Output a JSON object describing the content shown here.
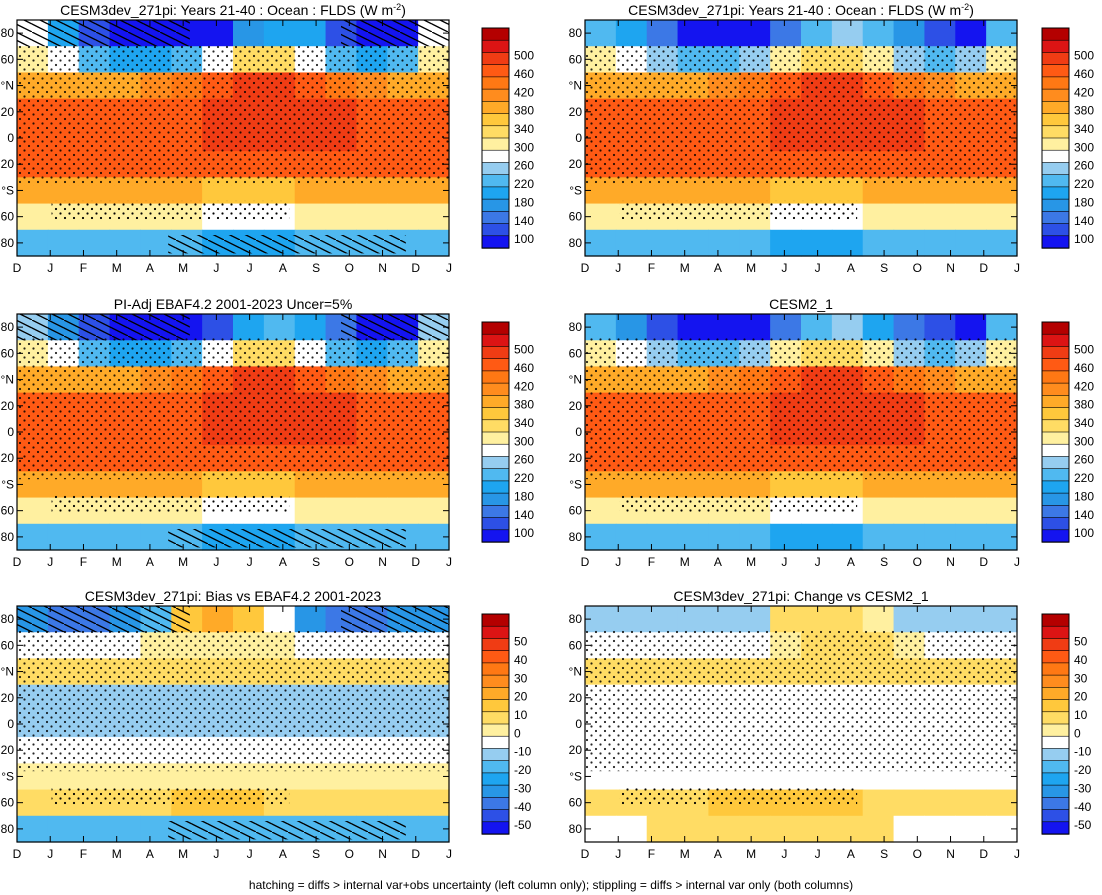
{
  "footnote": "hatching = diffs > internal var+obs uncertainty (left column only); stippling = diffs > internal var only (both columns)",
  "chart_data": [
    {
      "type": "heatmap",
      "title": "CESM3dev_271pi: Years 21-40 : Ocean : FLDS (W m",
      "title_sup": "-2",
      "title_suffix": ")",
      "x_tick_labels": [
        "D",
        "J",
        "F",
        "M",
        "A",
        "M",
        "J",
        "J",
        "A",
        "S",
        "O",
        "N",
        "D",
        "J"
      ],
      "y_tick_labels": [
        "80",
        "60",
        "°N",
        "20",
        "0",
        "20",
        "°S",
        "60",
        "80"
      ],
      "colorbar_labels": [
        "500",
        "460",
        "420",
        "380",
        "340",
        "300",
        "260",
        "220",
        "180",
        "140",
        "100"
      ],
      "colors": [
        "#1414f0",
        "#2d50e6",
        "#3c78e6",
        "#2896e6",
        "#1ea5f0",
        "#50b9f0",
        "#96cdf0",
        "#ffffff",
        "#fff0a0",
        "#ffdc64",
        "#ffc83c",
        "#ffaa28",
        "#ff8c1e",
        "#ff7814",
        "#ff5a14",
        "#f03c14",
        "#dc1414",
        "#b40000"
      ],
      "center": 300,
      "step": 20,
      "hatching": true,
      "stippling": true,
      "values": [
        [
          260,
          200,
          140,
          100,
          100,
          100,
          130,
          180,
          210,
          200,
          150,
          110,
          100,
          260
        ],
        [
          280,
          260,
          220,
          200,
          200,
          220,
          260,
          300,
          300,
          260,
          220,
          200,
          220,
          280
        ],
        [
          340,
          340,
          340,
          340,
          360,
          380,
          400,
          420,
          420,
          400,
          380,
          360,
          340,
          340
        ],
        [
          400,
          400,
          400,
          400,
          400,
          400,
          420,
          420,
          420,
          420,
          420,
          400,
          400,
          400
        ],
        [
          400,
          400,
          400,
          400,
          400,
          400,
          420,
          420,
          420,
          420,
          420,
          400,
          400,
          400
        ],
        [
          400,
          400,
          400,
          400,
          400,
          400,
          400,
          400,
          400,
          400,
          400,
          400,
          400,
          400
        ],
        [
          340,
          340,
          340,
          340,
          340,
          340,
          320,
          320,
          320,
          340,
          340,
          340,
          340,
          340
        ],
        [
          280,
          280,
          280,
          280,
          280,
          280,
          260,
          260,
          260,
          280,
          280,
          280,
          280,
          280
        ],
        [
          220,
          220,
          220,
          220,
          220,
          220,
          200,
          200,
          200,
          220,
          220,
          220,
          220,
          220
        ]
      ]
    },
    {
      "type": "heatmap",
      "title": "CESM3dev_271pi: Years 21-40 : Ocean : FLDS (W m",
      "title_sup": "-2",
      "title_suffix": ")",
      "x_tick_labels": [
        "D",
        "J",
        "F",
        "M",
        "A",
        "M",
        "J",
        "J",
        "A",
        "S",
        "O",
        "N",
        "D",
        "J"
      ],
      "y_tick_labels": [
        "80",
        "60",
        "°N",
        "20",
        "0",
        "20",
        "°S",
        "60",
        "80"
      ],
      "colorbar_labels": [
        "500",
        "460",
        "420",
        "380",
        "340",
        "300",
        "260",
        "220",
        "180",
        "140",
        "100"
      ],
      "colors": [
        "#1414f0",
        "#2d50e6",
        "#3c78e6",
        "#2896e6",
        "#1ea5f0",
        "#50b9f0",
        "#96cdf0",
        "#ffffff",
        "#fff0a0",
        "#ffdc64",
        "#ffc83c",
        "#ffaa28",
        "#ff8c1e",
        "#ff7814",
        "#ff5a14",
        "#f03c14",
        "#dc1414",
        "#b40000"
      ],
      "center": 300,
      "step": 20,
      "hatching": false,
      "stippling": true,
      "values": [
        [
          220,
          200,
          160,
          120,
          120,
          130,
          170,
          220,
          240,
          220,
          180,
          140,
          130,
          220
        ],
        [
          280,
          260,
          240,
          220,
          220,
          240,
          280,
          300,
          300,
          280,
          240,
          220,
          240,
          280
        ],
        [
          340,
          340,
          340,
          340,
          360,
          380,
          400,
          420,
          420,
          400,
          380,
          360,
          340,
          340
        ],
        [
          400,
          400,
          400,
          400,
          400,
          400,
          420,
          420,
          420,
          420,
          420,
          400,
          400,
          400
        ],
        [
          400,
          400,
          400,
          400,
          400,
          400,
          420,
          420,
          420,
          420,
          420,
          400,
          400,
          400
        ],
        [
          400,
          400,
          400,
          400,
          400,
          400,
          400,
          400,
          400,
          400,
          400,
          400,
          400,
          400
        ],
        [
          340,
          340,
          340,
          340,
          340,
          340,
          320,
          320,
          320,
          340,
          340,
          340,
          340,
          340
        ],
        [
          280,
          280,
          280,
          280,
          280,
          280,
          260,
          260,
          260,
          280,
          280,
          280,
          280,
          280
        ],
        [
          220,
          220,
          220,
          220,
          220,
          220,
          200,
          200,
          200,
          220,
          220,
          220,
          220,
          220
        ]
      ]
    },
    {
      "type": "heatmap",
      "title": "PI-Adj EBAF4.2 2001-2023 Uncer=5%",
      "x_tick_labels": [
        "D",
        "J",
        "F",
        "M",
        "A",
        "M",
        "J",
        "J",
        "A",
        "S",
        "O",
        "N",
        "D",
        "J"
      ],
      "y_tick_labels": [
        "80",
        "60",
        "°N",
        "20",
        "0",
        "20",
        "°S",
        "60",
        "80"
      ],
      "colorbar_labels": [
        "500",
        "460",
        "420",
        "380",
        "340",
        "300",
        "260",
        "220",
        "180",
        "140",
        "100"
      ],
      "colors": [
        "#1414f0",
        "#2d50e6",
        "#3c78e6",
        "#2896e6",
        "#1ea5f0",
        "#50b9f0",
        "#96cdf0",
        "#ffffff",
        "#fff0a0",
        "#ffdc64",
        "#ffc83c",
        "#ffaa28",
        "#ff8c1e",
        "#ff7814",
        "#ff5a14",
        "#f03c14",
        "#dc1414",
        "#b40000"
      ],
      "center": 300,
      "step": 20,
      "hatching": true,
      "stippling": true,
      "values": [
        [
          240,
          180,
          140,
          100,
          100,
          110,
          150,
          200,
          220,
          200,
          160,
          120,
          110,
          240
        ],
        [
          280,
          260,
          220,
          200,
          200,
          220,
          260,
          300,
          300,
          260,
          220,
          200,
          220,
          280
        ],
        [
          340,
          340,
          340,
          340,
          360,
          380,
          400,
          420,
          420,
          400,
          380,
          360,
          340,
          340
        ],
        [
          400,
          400,
          400,
          400,
          400,
          400,
          420,
          420,
          420,
          420,
          420,
          400,
          400,
          400
        ],
        [
          400,
          400,
          400,
          400,
          400,
          400,
          420,
          420,
          420,
          420,
          420,
          400,
          400,
          400
        ],
        [
          400,
          400,
          400,
          400,
          400,
          400,
          400,
          400,
          400,
          400,
          400,
          400,
          400,
          400
        ],
        [
          340,
          340,
          340,
          340,
          340,
          340,
          320,
          320,
          320,
          340,
          340,
          340,
          340,
          340
        ],
        [
          280,
          280,
          280,
          280,
          280,
          280,
          260,
          260,
          260,
          280,
          280,
          280,
          280,
          280
        ],
        [
          220,
          220,
          220,
          220,
          220,
          220,
          200,
          200,
          200,
          220,
          220,
          220,
          220,
          220
        ]
      ]
    },
    {
      "type": "heatmap",
      "title": "CESM2_1",
      "x_tick_labels": [
        "D",
        "J",
        "F",
        "M",
        "A",
        "M",
        "J",
        "J",
        "A",
        "S",
        "O",
        "N",
        "D",
        "J"
      ],
      "y_tick_labels": [
        "80",
        "60",
        "°N",
        "20",
        "0",
        "20",
        "°S",
        "60",
        "80"
      ],
      "colorbar_labels": [
        "500",
        "460",
        "420",
        "380",
        "340",
        "300",
        "260",
        "220",
        "180",
        "140",
        "100"
      ],
      "colors": [
        "#1414f0",
        "#2d50e6",
        "#3c78e6",
        "#2896e6",
        "#1ea5f0",
        "#50b9f0",
        "#96cdf0",
        "#ffffff",
        "#fff0a0",
        "#ffdc64",
        "#ffc83c",
        "#ffaa28",
        "#ff8c1e",
        "#ff7814",
        "#ff5a14",
        "#f03c14",
        "#dc1414",
        "#b40000"
      ],
      "center": 300,
      "step": 20,
      "hatching": false,
      "stippling": true,
      "values": [
        [
          220,
          180,
          140,
          120,
          120,
          130,
          170,
          220,
          240,
          210,
          170,
          140,
          130,
          220
        ],
        [
          280,
          260,
          240,
          220,
          220,
          240,
          280,
          300,
          300,
          280,
          240,
          220,
          240,
          280
        ],
        [
          340,
          340,
          340,
          340,
          360,
          380,
          400,
          420,
          420,
          400,
          380,
          360,
          340,
          340
        ],
        [
          400,
          400,
          400,
          400,
          400,
          400,
          420,
          420,
          420,
          420,
          420,
          400,
          400,
          400
        ],
        [
          400,
          400,
          400,
          400,
          400,
          400,
          420,
          420,
          420,
          420,
          420,
          400,
          400,
          400
        ],
        [
          400,
          400,
          400,
          400,
          400,
          400,
          400,
          400,
          400,
          400,
          400,
          400,
          400,
          400
        ],
        [
          340,
          340,
          340,
          340,
          340,
          340,
          320,
          320,
          320,
          340,
          340,
          340,
          340,
          340
        ],
        [
          280,
          280,
          280,
          280,
          280,
          280,
          260,
          260,
          260,
          280,
          280,
          280,
          280,
          280
        ],
        [
          220,
          220,
          220,
          220,
          220,
          220,
          200,
          200,
          200,
          220,
          220,
          220,
          220,
          220
        ]
      ]
    },
    {
      "type": "heatmap",
      "title": "CESM3dev_271pi: Bias vs EBAF4.2 2001-2023",
      "x_tick_labels": [
        "D",
        "J",
        "F",
        "M",
        "A",
        "M",
        "J",
        "J",
        "A",
        "S",
        "O",
        "N",
        "D",
        "J"
      ],
      "y_tick_labels": [
        "80",
        "60",
        "°N",
        "20",
        "0",
        "20",
        "°S",
        "60",
        "80"
      ],
      "colorbar_labels": [
        "50",
        "40",
        "30",
        "20",
        "10",
        "0",
        "-10",
        "-20",
        "-30",
        "-40",
        "-50"
      ],
      "colors": [
        "#1414f0",
        "#2d50e6",
        "#3c78e6",
        "#2896e6",
        "#1ea5f0",
        "#50b9f0",
        "#96cdf0",
        "#ffffff",
        "#fff0a0",
        "#ffdc64",
        "#ffc83c",
        "#ffaa28",
        "#ff8c1e",
        "#ff7814",
        "#ff5a14",
        "#f03c14",
        "#dc1414",
        "#b40000"
      ],
      "center": 0,
      "step": 5,
      "hatching": true,
      "stippling": true,
      "values": [
        [
          -30,
          -35,
          -35,
          -30,
          -20,
          5,
          10,
          5,
          -10,
          -30,
          -35,
          -35,
          -30,
          -30
        ],
        [
          -10,
          -10,
          -10,
          -10,
          -5,
          -5,
          -5,
          -5,
          -5,
          -10,
          -10,
          -10,
          -10,
          -10
        ],
        [
          0,
          0,
          0,
          0,
          0,
          0,
          0,
          0,
          0,
          0,
          0,
          0,
          0,
          0
        ],
        [
          -15,
          -15,
          -15,
          -15,
          -15,
          -15,
          -15,
          -15,
          -15,
          -15,
          -15,
          -15,
          -15,
          -15
        ],
        [
          -15,
          -15,
          -15,
          -15,
          -15,
          -15,
          -15,
          -15,
          -15,
          -15,
          -15,
          -15,
          -15,
          -15
        ],
        [
          -10,
          -10,
          -10,
          -10,
          -10,
          -10,
          -10,
          -10,
          -10,
          -10,
          -10,
          -10,
          -10,
          -10
        ],
        [
          -5,
          -5,
          -5,
          -5,
          -5,
          -5,
          -5,
          -5,
          -5,
          -5,
          -5,
          -5,
          -5,
          -5
        ],
        [
          0,
          0,
          0,
          0,
          0,
          5,
          5,
          5,
          0,
          0,
          0,
          0,
          0,
          0
        ],
        [
          -20,
          -20,
          -20,
          -20,
          -20,
          -20,
          -20,
          -20,
          -20,
          -20,
          -20,
          -20,
          -20,
          -20
        ]
      ]
    },
    {
      "type": "heatmap",
      "title": "CESM3dev_271pi: Change vs CESM2_1",
      "x_tick_labels": [
        "D",
        "J",
        "F",
        "M",
        "A",
        "M",
        "J",
        "J",
        "A",
        "S",
        "O",
        "N",
        "D",
        "J"
      ],
      "y_tick_labels": [
        "80",
        "60",
        "°N",
        "20",
        "0",
        "20",
        "°S",
        "60",
        "80"
      ],
      "colorbar_labels": [
        "50",
        "40",
        "30",
        "20",
        "10",
        "0",
        "-10",
        "-20",
        "-30",
        "-40",
        "-50"
      ],
      "colors": [
        "#1414f0",
        "#2d50e6",
        "#3c78e6",
        "#2896e6",
        "#1ea5f0",
        "#50b9f0",
        "#96cdf0",
        "#ffffff",
        "#fff0a0",
        "#ffdc64",
        "#ffc83c",
        "#ffaa28",
        "#ff8c1e",
        "#ff7814",
        "#ff5a14",
        "#f03c14",
        "#dc1414",
        "#b40000"
      ],
      "center": 0,
      "step": 5,
      "hatching": false,
      "stippling": true,
      "values": [
        [
          -12,
          -12,
          -12,
          -12,
          -12,
          -12,
          0,
          0,
          0,
          -5,
          -12,
          -12,
          -12,
          -12
        ],
        [
          -8,
          -8,
          -8,
          -10,
          -10,
          -8,
          -5,
          0,
          0,
          0,
          -5,
          -8,
          -8,
          -8
        ],
        [
          0,
          0,
          0,
          0,
          0,
          0,
          0,
          0,
          0,
          0,
          0,
          0,
          0,
          0
        ],
        [
          -8,
          -8,
          -8,
          -8,
          -8,
          -8,
          -8,
          -8,
          -8,
          -8,
          -8,
          -8,
          -8,
          -8
        ],
        [
          -8,
          -8,
          -8,
          -8,
          -8,
          -8,
          -8,
          -8,
          -8,
          -8,
          -8,
          -8,
          -8,
          -8
        ],
        [
          -6,
          -6,
          -6,
          -6,
          -6,
          -6,
          -6,
          -6,
          -6,
          -6,
          -6,
          -6,
          -6,
          -6
        ],
        [
          -6,
          -6,
          -8,
          -8,
          -6,
          -6,
          -6,
          -6,
          -6,
          -6,
          -6,
          -6,
          -6,
          -6
        ],
        [
          0,
          0,
          0,
          0,
          5,
          5,
          5,
          5,
          5,
          0,
          0,
          0,
          0,
          0
        ],
        [
          -6,
          -6,
          0,
          0,
          0,
          0,
          0,
          0,
          0,
          0,
          -6,
          -6,
          -6,
          -6
        ]
      ]
    }
  ]
}
